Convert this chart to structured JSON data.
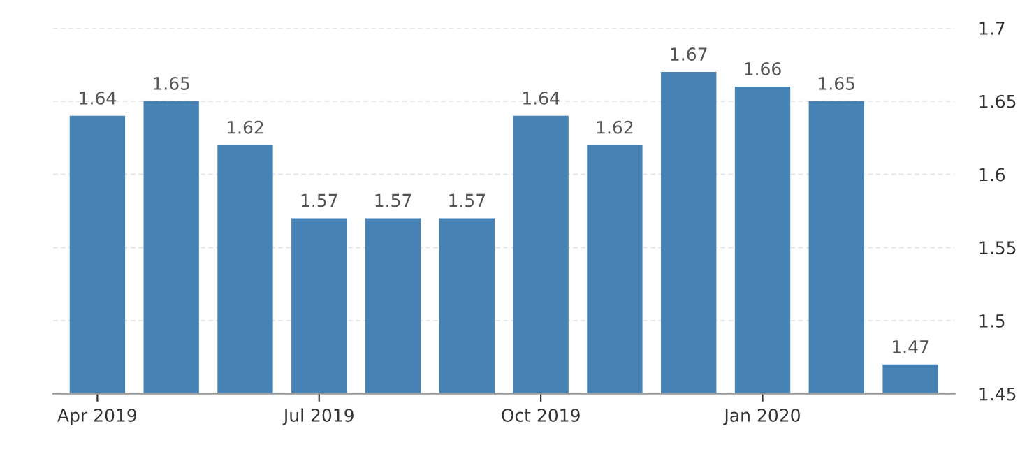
{
  "chart_data": {
    "type": "bar",
    "categories": [
      "Apr 2019",
      null,
      null,
      "Jul 2019",
      null,
      null,
      "Oct 2019",
      null,
      null,
      "Jan 2020",
      null,
      null
    ],
    "values": [
      1.64,
      1.65,
      1.62,
      1.57,
      1.57,
      1.57,
      1.64,
      1.62,
      1.67,
      1.66,
      1.65,
      1.47
    ],
    "color": "#4682b4",
    "ylim": [
      1.45,
      1.7
    ],
    "yticks": [
      1.45,
      1.5,
      1.55,
      1.6,
      1.65,
      1.7
    ],
    "grid": "y",
    "data_labels": true
  }
}
